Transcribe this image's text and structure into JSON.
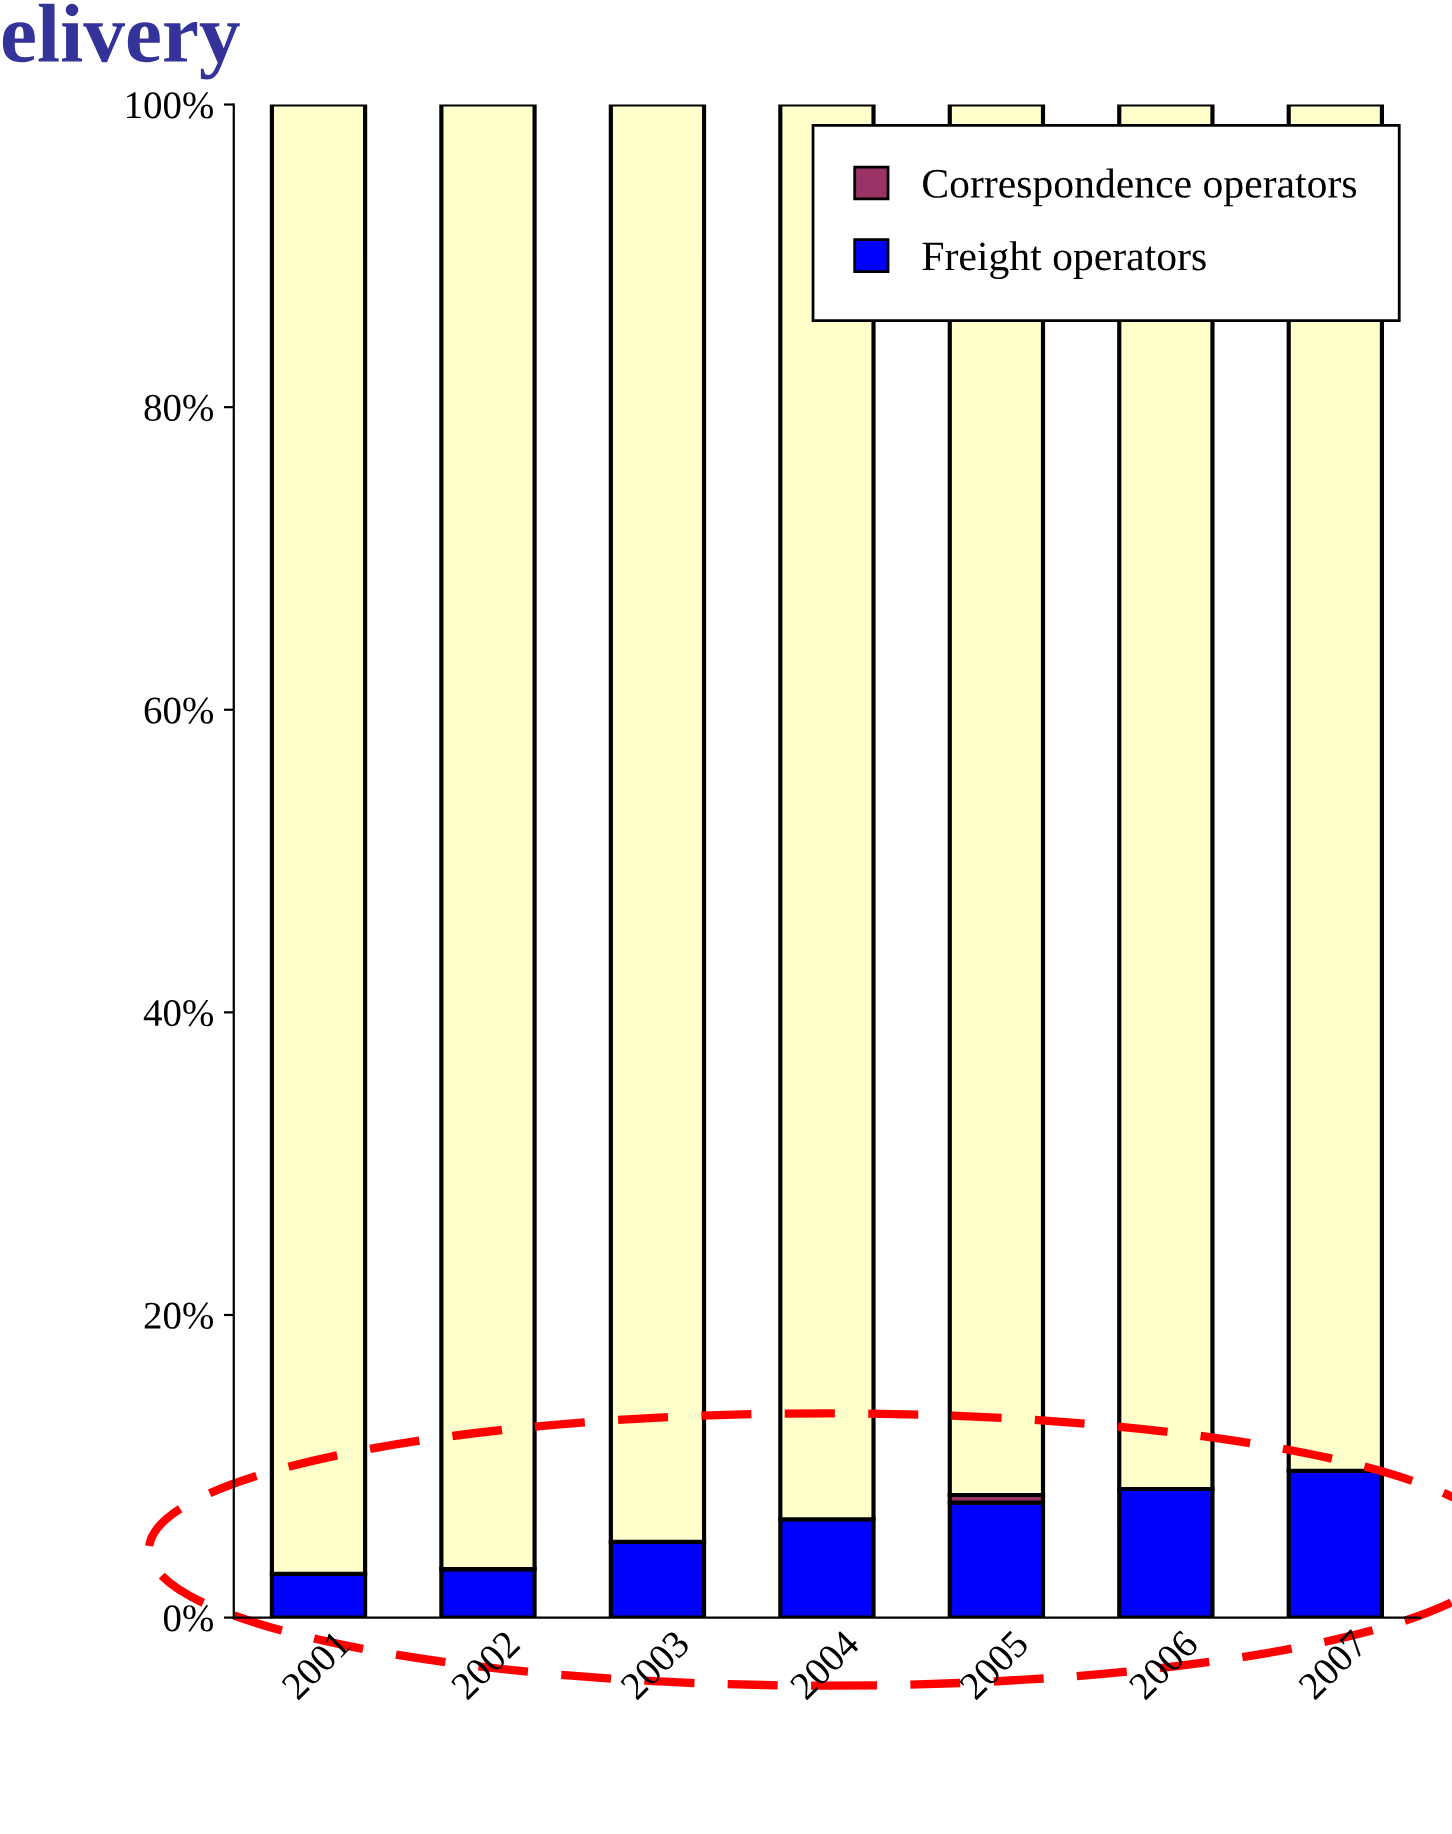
{
  "chart_data": {
    "type": "bar",
    "title": "elivery",
    "stacked": true,
    "categories": [
      "2001",
      "2002",
      "2003",
      "2004",
      "2005",
      "2006",
      "2007"
    ],
    "series": [
      {
        "name": "Freight operators",
        "color": "#0000ff",
        "values": [
          2.9,
          3.2,
          5.0,
          6.5,
          7.6,
          8.5,
          9.7
        ]
      },
      {
        "name": "Correspondence operators",
        "color": "#993366",
        "values": [
          0,
          0,
          0,
          0,
          0.5,
          0,
          0
        ]
      },
      {
        "color": "#ffffcc",
        "values": [
          97.1,
          96.8,
          95.0,
          93.5,
          91.9,
          91.5,
          90.3
        ]
      }
    ],
    "ylim": [
      0,
      100
    ],
    "yticks": [
      {
        "value": 0,
        "label": "0%"
      },
      {
        "value": 20,
        "label": "20%"
      },
      {
        "value": 40,
        "label": "40%"
      },
      {
        "value": 60,
        "label": "60%"
      },
      {
        "value": 80,
        "label": "80%"
      },
      {
        "value": 100,
        "label": "100%"
      }
    ],
    "grid": false,
    "legend": "top right"
  }
}
